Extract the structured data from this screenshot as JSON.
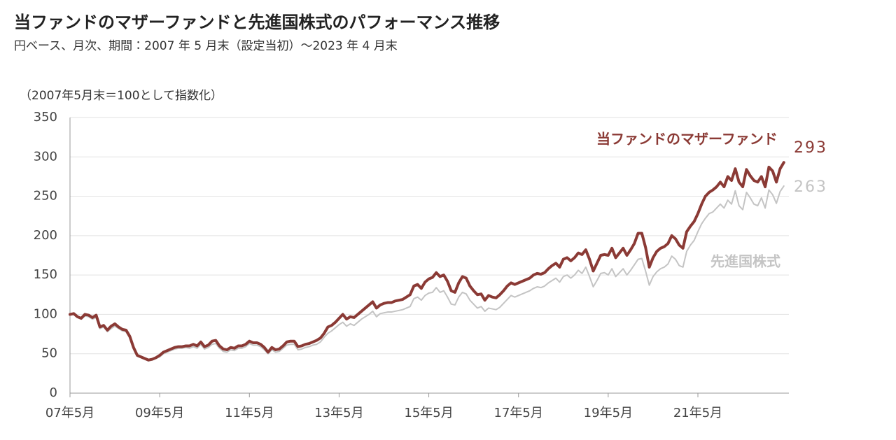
{
  "chart_data": {
    "type": "line",
    "title": "当ファンドのマザーファンドと先進国株式のパフォーマンス推移",
    "subtitle": "円ベース、月次、期間：2007 年 5 月末（設定当初）～2023 年 4 月末",
    "y_label": "（2007年5月末＝100として指数化）",
    "ylim": [
      0,
      350
    ],
    "yticks": [
      0,
      50,
      100,
      150,
      200,
      250,
      300,
      350
    ],
    "grid": true,
    "categories": [
      "07年5月",
      null,
      null,
      null,
      null,
      null,
      null,
      null,
      null,
      null,
      null,
      null,
      null,
      null,
      null,
      null,
      null,
      null,
      null,
      null,
      null,
      null,
      null,
      null,
      "09年5月",
      null,
      null,
      null,
      null,
      null,
      null,
      null,
      null,
      null,
      null,
      null,
      null,
      null,
      null,
      null,
      null,
      null,
      null,
      null,
      null,
      null,
      null,
      null,
      "11年5月",
      null,
      null,
      null,
      null,
      null,
      null,
      null,
      null,
      null,
      null,
      null,
      null,
      null,
      null,
      null,
      null,
      null,
      null,
      null,
      null,
      null,
      null,
      null,
      "13年5月",
      null,
      null,
      null,
      null,
      null,
      null,
      null,
      null,
      null,
      null,
      null,
      null,
      null,
      null,
      null,
      null,
      null,
      null,
      null,
      null,
      null,
      null,
      null,
      "15年5月",
      null,
      null,
      null,
      null,
      null,
      null,
      null,
      null,
      null,
      null,
      null,
      null,
      null,
      null,
      null,
      null,
      null,
      null,
      null,
      null,
      null,
      null,
      null,
      "17年5月",
      null,
      null,
      null,
      null,
      null,
      null,
      null,
      null,
      null,
      null,
      null,
      null,
      null,
      null,
      null,
      null,
      null,
      null,
      null,
      null,
      null,
      null,
      null,
      "19年5月",
      null,
      null,
      null,
      null,
      null,
      null,
      null,
      null,
      null,
      null,
      null,
      null,
      null,
      null,
      null,
      null,
      null,
      null,
      null,
      null,
      null,
      null,
      null,
      "21年5月",
      null,
      null,
      null,
      null,
      null,
      null,
      null,
      null,
      null,
      null,
      null,
      null,
      null,
      null,
      null,
      null,
      null,
      null,
      null,
      null,
      null,
      null,
      null
    ],
    "series": [
      {
        "name": "当ファンドのマザーファンド",
        "color": "#8b3a35",
        "values": [
          100,
          101,
          97,
          95,
          100,
          99,
          96,
          99,
          84,
          86,
          80,
          85,
          88,
          84,
          81,
          80,
          72,
          58,
          48,
          46,
          44,
          42,
          43,
          45,
          48,
          52,
          54,
          56,
          58,
          59,
          59,
          60,
          60,
          62,
          60,
          65,
          59,
          61,
          66,
          67,
          60,
          56,
          55,
          58,
          57,
          60,
          60,
          62,
          66,
          64,
          64,
          62,
          58,
          52,
          58,
          55,
          56,
          60,
          65,
          66,
          66,
          59,
          60,
          62,
          63,
          65,
          67,
          70,
          76,
          84,
          86,
          90,
          95,
          100,
          94,
          97,
          96,
          100,
          104,
          108,
          112,
          116,
          108,
          112,
          114,
          115,
          115,
          117,
          118,
          119,
          122,
          125,
          136,
          138,
          133,
          141,
          145,
          147,
          153,
          148,
          150,
          142,
          130,
          128,
          140,
          148,
          146,
          136,
          130,
          125,
          126,
          118,
          124,
          122,
          121,
          125,
          130,
          136,
          140,
          138,
          140,
          142,
          144,
          146,
          150,
          152,
          151,
          153,
          158,
          162,
          165,
          160,
          170,
          172,
          168,
          172,
          178,
          176,
          182,
          170,
          155,
          165,
          175,
          176,
          175,
          184,
          172,
          178,
          184,
          175,
          182,
          190,
          203,
          203,
          185,
          160,
          172,
          180,
          184,
          186,
          190,
          200,
          196,
          188,
          184,
          205,
          212,
          218,
          228,
          240,
          250,
          255,
          258,
          262,
          268,
          262,
          275,
          270,
          285,
          268,
          262,
          284,
          276,
          270,
          268,
          275,
          262,
          287,
          282,
          268,
          285,
          293
        ]
      },
      {
        "name": "先進国株式",
        "color": "#c4c4c4",
        "values": [
          99,
          100,
          96,
          94,
          98,
          97,
          94,
          96,
          82,
          84,
          78,
          82,
          85,
          82,
          79,
          78,
          70,
          56,
          47,
          45,
          43,
          41,
          42,
          44,
          46,
          50,
          52,
          54,
          56,
          57,
          57,
          58,
          57,
          59,
          57,
          62,
          56,
          58,
          62,
          63,
          57,
          53,
          52,
          55,
          54,
          57,
          57,
          59,
          63,
          61,
          61,
          59,
          55,
          50,
          55,
          52,
          53,
          57,
          61,
          62,
          62,
          55,
          56,
          58,
          59,
          61,
          62,
          65,
          71,
          76,
          79,
          83,
          87,
          90,
          85,
          88,
          86,
          90,
          94,
          97,
          100,
          104,
          97,
          101,
          102,
          103,
          103,
          104,
          105,
          106,
          108,
          110,
          120,
          122,
          118,
          124,
          127,
          128,
          134,
          128,
          130,
          122,
          113,
          112,
          122,
          128,
          126,
          118,
          113,
          108,
          110,
          104,
          108,
          107,
          106,
          109,
          114,
          119,
          124,
          122,
          124,
          126,
          128,
          130,
          133,
          135,
          134,
          136,
          140,
          143,
          146,
          141,
          148,
          150,
          146,
          150,
          156,
          152,
          160,
          148,
          135,
          143,
          152,
          153,
          150,
          158,
          148,
          153,
          158,
          150,
          156,
          163,
          170,
          171,
          155,
          137,
          148,
          154,
          158,
          160,
          164,
          174,
          170,
          162,
          160,
          180,
          188,
          194,
          205,
          215,
          222,
          228,
          230,
          235,
          240,
          235,
          245,
          240,
          257,
          238,
          233,
          255,
          248,
          240,
          238,
          248,
          235,
          258,
          252,
          241,
          256,
          263
        ]
      }
    ]
  }
}
